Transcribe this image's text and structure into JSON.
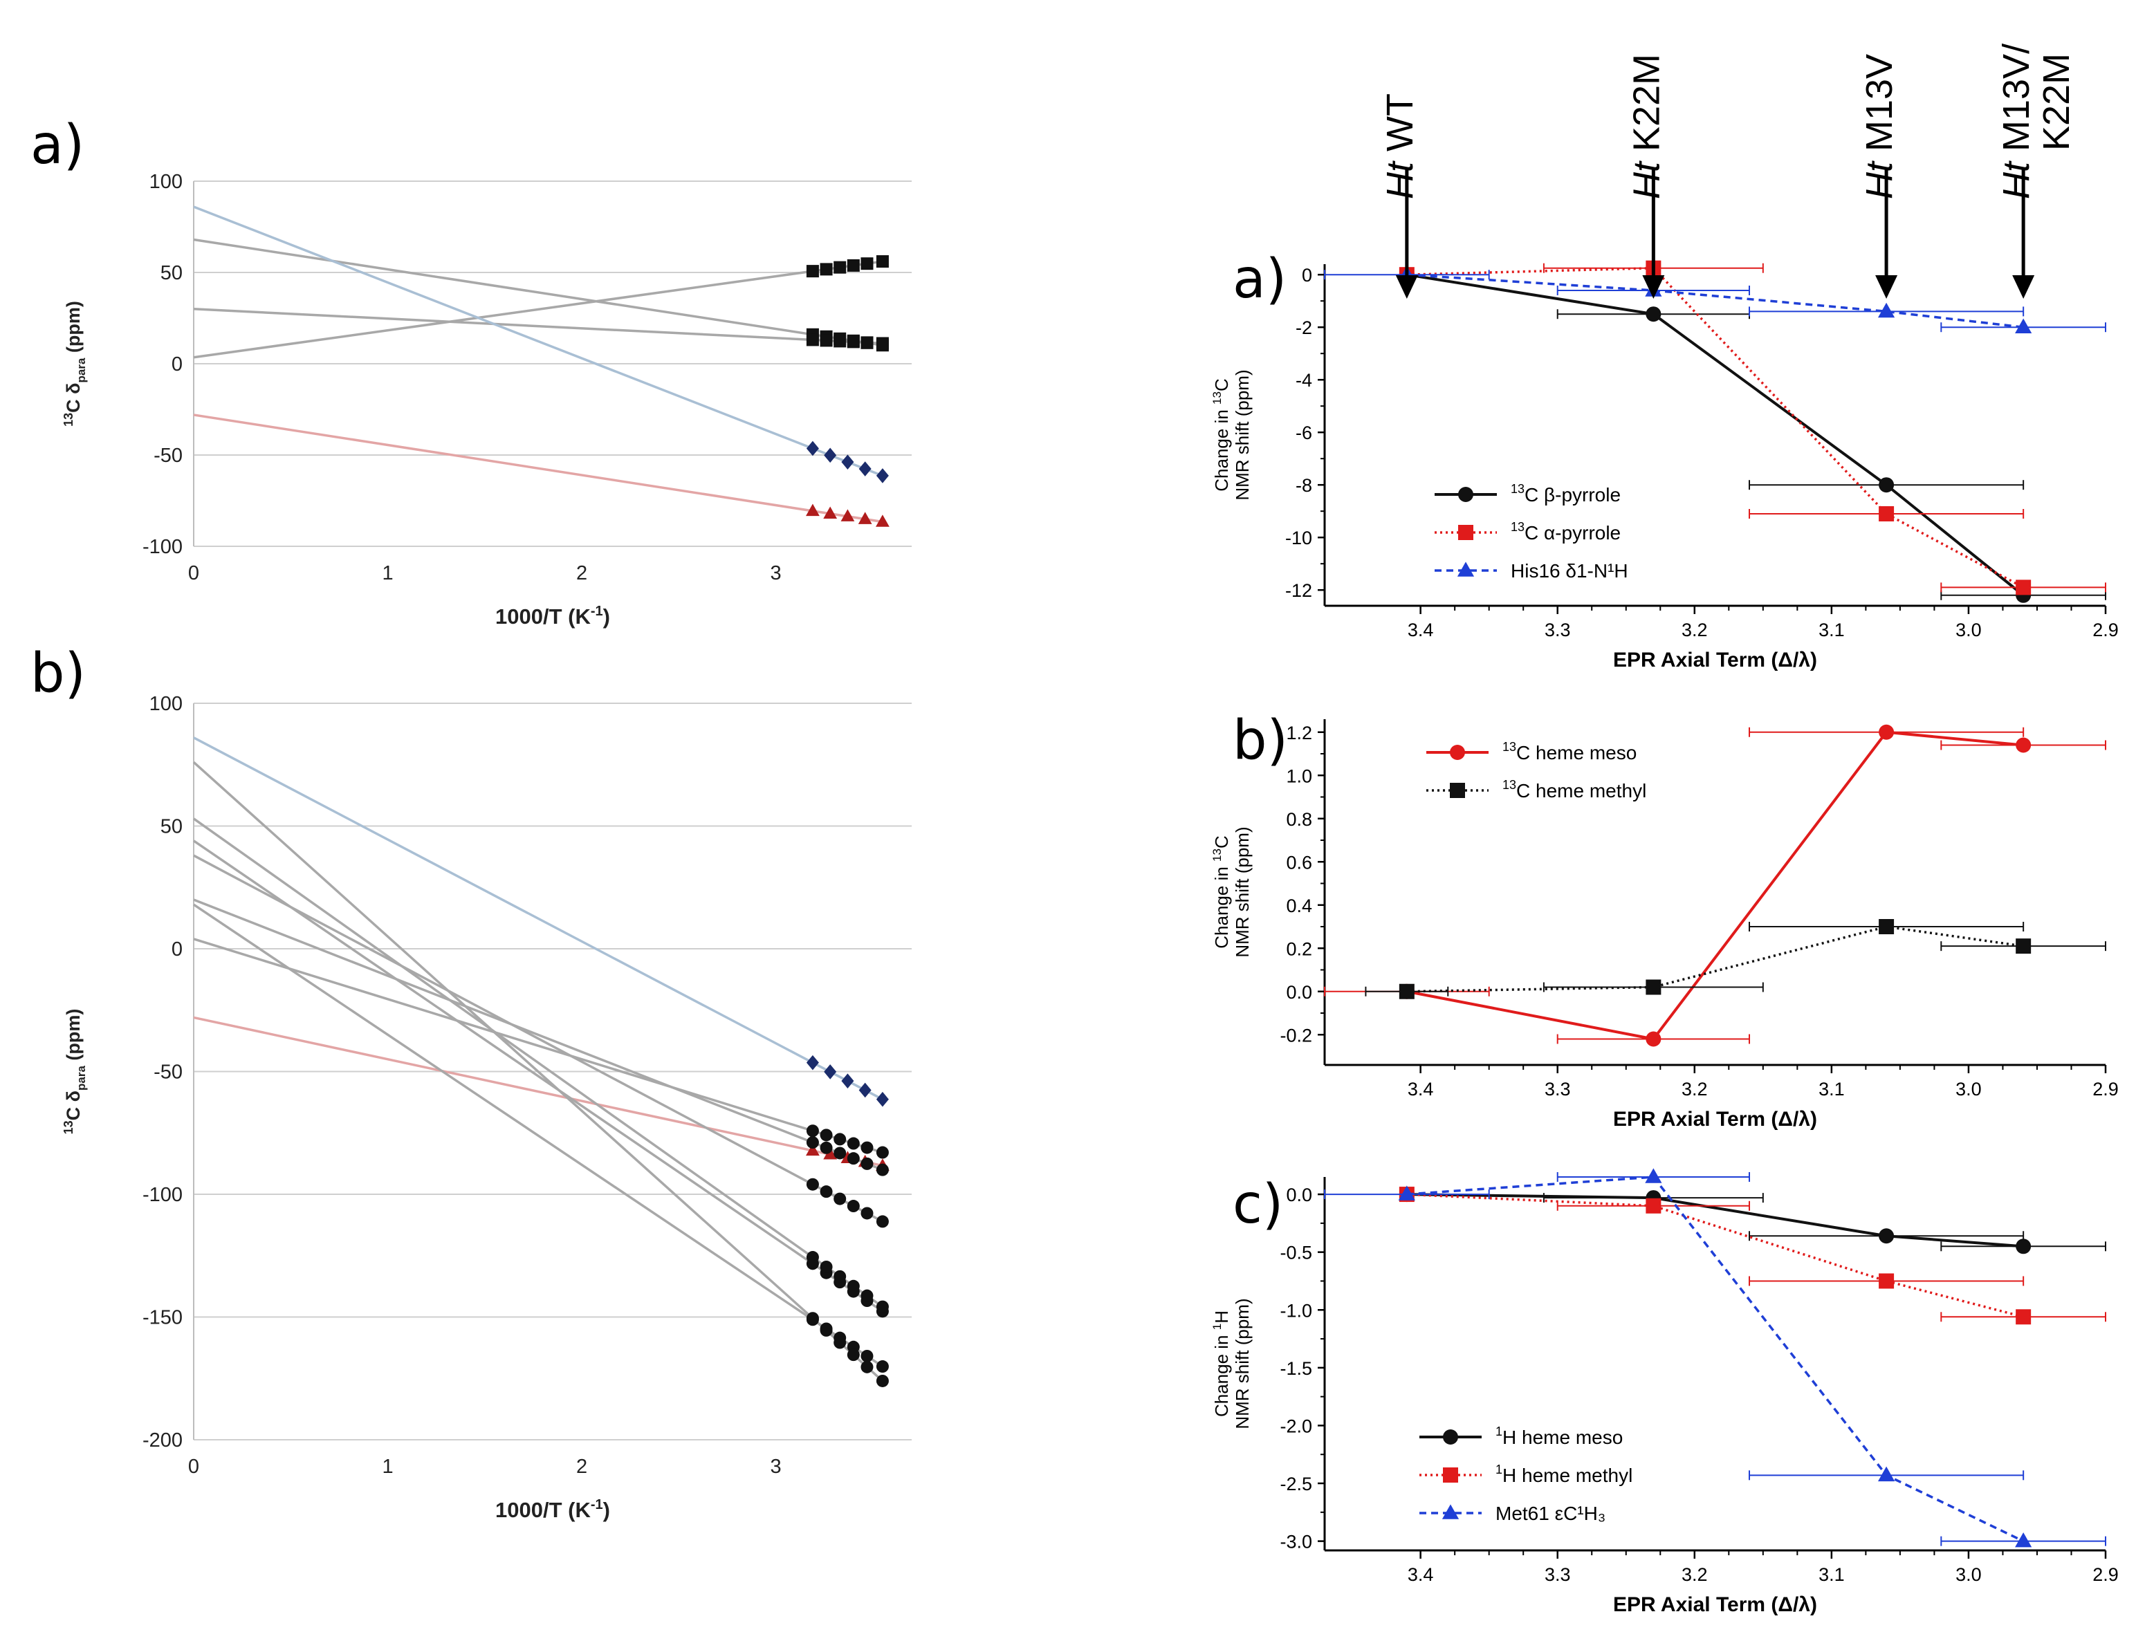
{
  "colors": {
    "black": "#111111",
    "red": "#e01b1b",
    "blue": "#1f3fd6",
    "navy": "#1b2c6b",
    "darkred": "#b01c1c",
    "fit_gray": "#a8a8a8",
    "fit_blue": "#a9bfd4",
    "fit_red": "#e3a5a5",
    "grid": "#cfcfcf"
  },
  "chart_data": [
    {
      "id": "left-a",
      "panel_label": "a)",
      "type": "scatter",
      "xlabel": "1000/T (K",
      "xlabel_sup": "-1",
      "xlabel_end": ")",
      "ylabel_pre": "13",
      "ylabel_main": "C δ",
      "ylabel_sub": "para",
      "ylabel_post": " (ppm)",
      "xlim": [
        0,
        3.7
      ],
      "ylim": [
        -100,
        100
      ],
      "xticks": [
        0,
        1,
        2,
        3
      ],
      "xtick_labels": [
        "0",
        "1",
        "2",
        "3"
      ],
      "yticks": [
        -100,
        -50,
        0,
        50,
        100
      ],
      "ytick_labels": [
        "-100",
        "-50",
        "0",
        "50",
        "100"
      ],
      "grid": true,
      "x_points": [
        3.19,
        3.26,
        3.33,
        3.4,
        3.47,
        3.55
      ],
      "series": [
        {
          "intercept": 3.5,
          "slope": 14.8,
          "color": "fit_gray",
          "marker": "square",
          "marker_color": "black",
          "n": 6
        },
        {
          "intercept": 68,
          "slope": -16.3,
          "color": "fit_gray",
          "marker": "square",
          "marker_color": "black",
          "n": 6
        },
        {
          "intercept": 30,
          "slope": -5.3,
          "color": "fit_gray",
          "marker": "square",
          "marker_color": "black",
          "n": 6
        },
        {
          "intercept": 86,
          "slope": -41.5,
          "color": "fit_blue",
          "marker": "diamond",
          "marker_color": "navy",
          "n": 5
        },
        {
          "intercept": -28,
          "slope": -16.5,
          "color": "fit_red",
          "marker": "triangle",
          "marker_color": "darkred",
          "n": 5
        }
      ]
    },
    {
      "id": "left-b",
      "panel_label": "b)",
      "type": "scatter",
      "xlabel": "1000/T (K",
      "xlabel_sup": "-1",
      "xlabel_end": ")",
      "ylabel_pre": "13",
      "ylabel_main": "C δ",
      "ylabel_sub": "para",
      "ylabel_post": " (ppm)",
      "xlim": [
        0,
        3.7
      ],
      "ylim": [
        -200,
        100
      ],
      "xticks": [
        0,
        1,
        2,
        3
      ],
      "xtick_labels": [
        "0",
        "1",
        "2",
        "3"
      ],
      "yticks": [
        -200,
        -150,
        -100,
        -50,
        0,
        50,
        100
      ],
      "ytick_labels": [
        "-200",
        "-150",
        "-100",
        "-50",
        "0",
        "50",
        "100"
      ],
      "grid": true,
      "x_points": [
        3.19,
        3.26,
        3.33,
        3.4,
        3.47,
        3.55
      ],
      "series": [
        {
          "intercept": 86,
          "slope": -41.5,
          "color": "fit_blue",
          "marker": "diamond",
          "marker_color": "navy",
          "n": 5
        },
        {
          "intercept": -28,
          "slope": -17,
          "color": "fit_red",
          "marker": "triangle",
          "marker_color": "darkred",
          "n": 5
        },
        {
          "intercept": 4,
          "slope": -24.5,
          "color": "fit_gray",
          "marker": "circle",
          "marker_color": "black",
          "n": 6
        },
        {
          "intercept": 20,
          "slope": -31,
          "color": "fit_gray",
          "marker": "circle",
          "marker_color": "black",
          "n": 6
        },
        {
          "intercept": 38,
          "slope": -42,
          "color": "fit_gray",
          "marker": "circle",
          "marker_color": "black",
          "n": 6
        },
        {
          "intercept": 44,
          "slope": -54,
          "color": "fit_gray",
          "marker": "circle",
          "marker_color": "black",
          "n": 6
        },
        {
          "intercept": 53,
          "slope": -56,
          "color": "fit_gray",
          "marker": "circle",
          "marker_color": "black",
          "n": 6
        },
        {
          "intercept": 18,
          "slope": -53,
          "color": "fit_gray",
          "marker": "circle",
          "marker_color": "black",
          "n": 6
        },
        {
          "intercept": 76,
          "slope": -71,
          "color": "fit_gray",
          "marker": "circle",
          "marker_color": "black",
          "n": 6
        }
      ]
    },
    {
      "id": "right-a",
      "panel_label": "a)",
      "type": "line",
      "xlabel": "EPR Axial Term (Δ/λ)",
      "ylabel_line1_pre": "Change in ",
      "ylabel_line1_sup": "13",
      "ylabel_line1_post": "C",
      "ylabel_line2": "NMR shift (ppm)",
      "xlim": [
        3.47,
        2.9
      ],
      "ylim": [
        -12.6,
        0.4
      ],
      "xticks": [
        3.4,
        3.3,
        3.2,
        3.1,
        3.0,
        2.9
      ],
      "xtick_labels": [
        "3.4",
        "3.3",
        "3.2",
        "3.1",
        "3.0",
        "2.9"
      ],
      "yticks": [
        0,
        -2,
        -4,
        -6,
        -8,
        -10,
        -12
      ],
      "ytick_labels": [
        "0",
        "-2",
        "-4",
        "-6",
        "-8",
        "-10",
        "-12"
      ],
      "grid": false,
      "mutants": [
        {
          "x": 3.41,
          "label_italic": "Ht",
          "label_rest": " WT"
        },
        {
          "x": 3.23,
          "label_italic": "Ht",
          "label_rest": " K22M"
        },
        {
          "x": 3.06,
          "label_italic": "Ht",
          "label_rest": " M13V"
        },
        {
          "x": 2.96,
          "label_italic": "Ht",
          "label_rest": " M13V/",
          "label_line2": "K22M"
        }
      ],
      "series": [
        {
          "name_sup": "13",
          "name": "C β-pyrrole",
          "color": "black",
          "dash": "solid",
          "marker": "circle",
          "x": [
            3.41,
            3.23,
            3.06,
            2.96
          ],
          "y": [
            0,
            -1.5,
            -8.0,
            -12.2
          ],
          "xerr": [
            0,
            0.07,
            0.1,
            0.06
          ]
        },
        {
          "name_sup": "13",
          "name": "C α-pyrrole",
          "color": "red",
          "dash": "dotted",
          "marker": "square",
          "x": [
            3.41,
            3.23,
            3.06,
            2.96
          ],
          "y": [
            0,
            0.25,
            -9.1,
            -11.9
          ],
          "xerr": [
            0,
            0.08,
            0.1,
            0.06
          ]
        },
        {
          "name_sup": "",
          "name": "His16 δ1-N¹H",
          "color": "blue",
          "dash": "dashed",
          "marker": "triangle",
          "x": [
            3.41,
            3.23,
            3.06,
            2.96
          ],
          "y": [
            0,
            -0.6,
            -1.4,
            -2.0
          ],
          "xerr": [
            0.06,
            0.07,
            0.1,
            0.06
          ]
        }
      ]
    },
    {
      "id": "right-b",
      "panel_label": "b)",
      "type": "line",
      "xlabel": "EPR Axial Term (Δ/λ)",
      "ylabel_line1_pre": "Change in ",
      "ylabel_line1_sup": "13",
      "ylabel_line1_post": "C",
      "ylabel_line2": "NMR shift (ppm)",
      "xlim": [
        3.47,
        2.9
      ],
      "ylim": [
        -0.34,
        1.26
      ],
      "xticks": [
        3.4,
        3.3,
        3.2,
        3.1,
        3.0,
        2.9
      ],
      "xtick_labels": [
        "3.4",
        "3.3",
        "3.2",
        "3.1",
        "3.0",
        "2.9"
      ],
      "yticks": [
        -0.2,
        0.0,
        0.2,
        0.4,
        0.6,
        0.8,
        1.0,
        1.2
      ],
      "ytick_labels": [
        "-0.2",
        "0.0",
        "0.2",
        "0.4",
        "0.6",
        "0.8",
        "1.0",
        "1.2"
      ],
      "grid": false,
      "series": [
        {
          "name_sup": "13",
          "name": "C heme meso",
          "color": "red",
          "dash": "solid",
          "marker": "circle",
          "x": [
            3.41,
            3.23,
            3.06,
            2.96
          ],
          "y": [
            0.0,
            -0.22,
            1.2,
            1.14
          ],
          "xerr": [
            0.06,
            0.07,
            0.1,
            0.06
          ]
        },
        {
          "name_sup": "13",
          "name": "C heme methyl",
          "color": "black",
          "dash": "dotted",
          "marker": "square",
          "x": [
            3.41,
            3.23,
            3.06,
            2.96
          ],
          "y": [
            0.0,
            0.02,
            0.3,
            0.21
          ],
          "xerr": [
            0.03,
            0.08,
            0.1,
            0.06
          ]
        }
      ]
    },
    {
      "id": "right-c",
      "panel_label": "c)",
      "type": "line",
      "xlabel": "EPR Axial Term (Δ/λ)",
      "ylabel_line1_pre": "Change in ",
      "ylabel_line1_sup": "1",
      "ylabel_line1_post": "H",
      "ylabel_line2": "NMR shift (ppm)",
      "xlim": [
        3.47,
        2.9
      ],
      "ylim": [
        -3.08,
        0.15
      ],
      "xticks": [
        3.4,
        3.3,
        3.2,
        3.1,
        3.0,
        2.9
      ],
      "xtick_labels": [
        "3.4",
        "3.3",
        "3.2",
        "3.1",
        "3.0",
        "2.9"
      ],
      "yticks": [
        -3.0,
        -2.5,
        -2.0,
        -1.5,
        -1.0,
        -0.5,
        0.0
      ],
      "ytick_labels": [
        "-3.0",
        "-2.5",
        "-2.0",
        "-1.5",
        "-1.0",
        "-0.5",
        "0.0"
      ],
      "grid": false,
      "series": [
        {
          "name_sup": "1",
          "name": "H heme meso",
          "color": "black",
          "dash": "solid",
          "marker": "circle",
          "x": [
            3.41,
            3.23,
            3.06,
            2.96
          ],
          "y": [
            0.0,
            -0.03,
            -0.36,
            -0.45
          ],
          "xerr": [
            0.0,
            0.08,
            0.1,
            0.06
          ]
        },
        {
          "name_sup": "1",
          "name": "H heme methyl",
          "color": "red",
          "dash": "dotted",
          "marker": "square",
          "x": [
            3.41,
            3.23,
            3.06,
            2.96
          ],
          "y": [
            0.0,
            -0.1,
            -0.75,
            -1.06
          ],
          "xerr": [
            0.0,
            0.07,
            0.1,
            0.06
          ]
        },
        {
          "name_sup": "",
          "name": "Met61 εC¹H₃",
          "color": "blue",
          "dash": "dashed",
          "marker": "triangle",
          "x": [
            3.41,
            3.23,
            3.06,
            2.96
          ],
          "y": [
            0.0,
            0.15,
            -2.43,
            -3.0
          ],
          "xerr": [
            0.06,
            0.07,
            0.1,
            0.06
          ]
        }
      ]
    }
  ]
}
